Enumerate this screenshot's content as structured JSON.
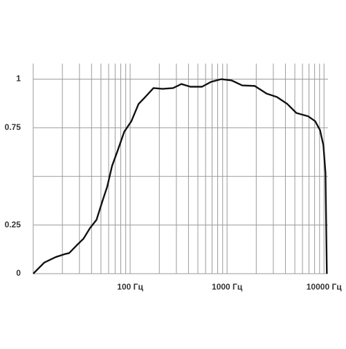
{
  "chart_data": {
    "type": "line",
    "log_x": true,
    "x": [
      10,
      13,
      17,
      21,
      23.5,
      28,
      33,
      38.5,
      45,
      52,
      58,
      65,
      74,
      87,
      103,
      122,
      143,
      174,
      216,
      277,
      338,
      418,
      552,
      684,
      873,
      1120,
      1430,
      1930,
      2550,
      3270,
      4190,
      5190,
      6860,
      8100,
      9100,
      9860,
      10360,
      10700
    ],
    "series": [
      {
        "color": "#111111",
        "values": [
          0,
          0.057,
          0.085,
          0.1,
          0.106,
          0.145,
          0.18,
          0.234,
          0.277,
          0.376,
          0.447,
          0.553,
          0.63,
          0.73,
          0.784,
          0.872,
          0.908,
          0.954,
          0.95,
          0.954,
          0.975,
          0.961,
          0.961,
          0.986,
          1.0,
          0.993,
          0.968,
          0.965,
          0.926,
          0.908,
          0.872,
          0.826,
          0.809,
          0.784,
          0.738,
          0.66,
          0.518,
          0
        ]
      }
    ],
    "xlim": [
      10,
      11000
    ],
    "ylim": [
      0,
      1.08
    ],
    "xticks": [
      {
        "value": 100,
        "label": "100 Гц"
      },
      {
        "value": 1000,
        "label": "1000 Гц"
      },
      {
        "value": 10000,
        "label": "10000 Гц"
      }
    ],
    "yticks": [
      0,
      0.25,
      0.75,
      1
    ],
    "xgrid": [
      20,
      30,
      40,
      50,
      60,
      70,
      80,
      90,
      100,
      200,
      300,
      400,
      500,
      600,
      700,
      800,
      900,
      1000,
      2000,
      3000,
      4000,
      5000,
      6000,
      7000,
      8000,
      9000,
      10000
    ],
    "ygrid": [
      0.25,
      0.5,
      0.75,
      1
    ],
    "grid": true
  }
}
